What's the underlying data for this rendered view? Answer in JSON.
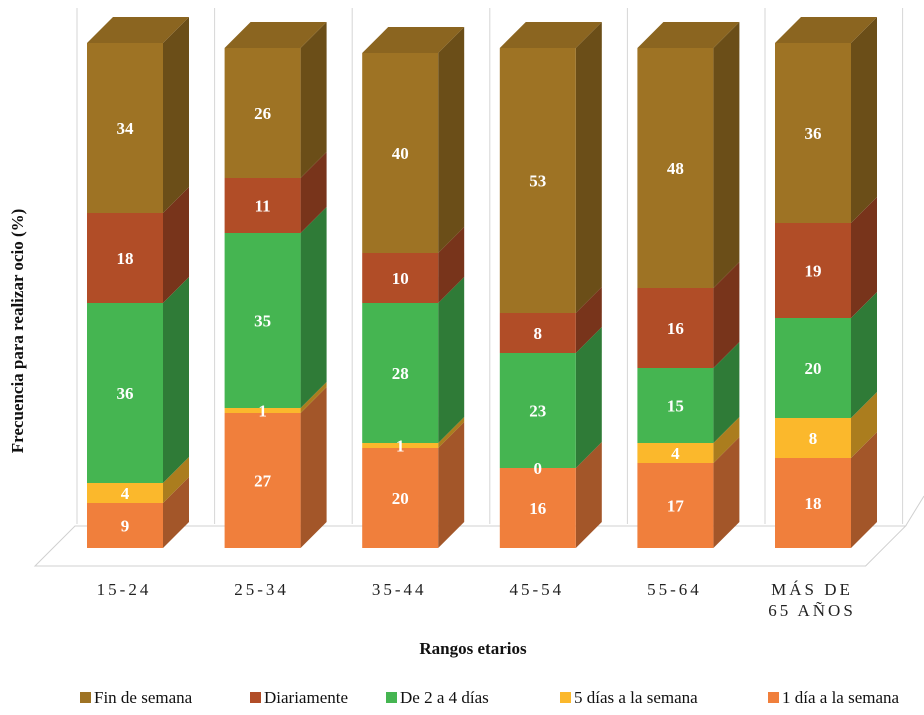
{
  "chart_data": {
    "type": "bar",
    "stacked": true,
    "style": "3d-stacked-column",
    "categories": [
      [
        "15-24"
      ],
      [
        "25-34"
      ],
      [
        "35-44"
      ],
      [
        "45-54"
      ],
      [
        "55-64"
      ],
      [
        "MÁS DE",
        "65 AÑOS"
      ]
    ],
    "series": [
      {
        "name": "1 día a la semana",
        "color": "#F07F3C",
        "values": [
          9,
          27,
          20,
          16,
          17,
          18
        ]
      },
      {
        "name": "5 días a la semana",
        "color": "#FBB82C",
        "values": [
          4,
          1,
          1,
          0,
          4,
          8
        ]
      },
      {
        "name": "De 2 a 4 días",
        "color": "#45B551",
        "values": [
          36,
          35,
          28,
          23,
          15,
          20
        ]
      },
      {
        "name": "Diariamente",
        "color": "#B14D27",
        "values": [
          18,
          11,
          10,
          8,
          16,
          19
        ]
      },
      {
        "name": "Fin de semana",
        "color": "#9E7324",
        "values": [
          34,
          26,
          40,
          53,
          48,
          36
        ]
      }
    ],
    "legend_order": [
      "Fin de semana",
      "Diariamente",
      "De 2 a 4 días",
      "5 días a la semana",
      "1 día a la semana"
    ],
    "legend_position": "bottom",
    "xlabel": "Rangos etarios",
    "ylabel": "Frecuencia para realizar ocio (%)",
    "ylim": [
      0,
      101
    ],
    "grid": true
  }
}
